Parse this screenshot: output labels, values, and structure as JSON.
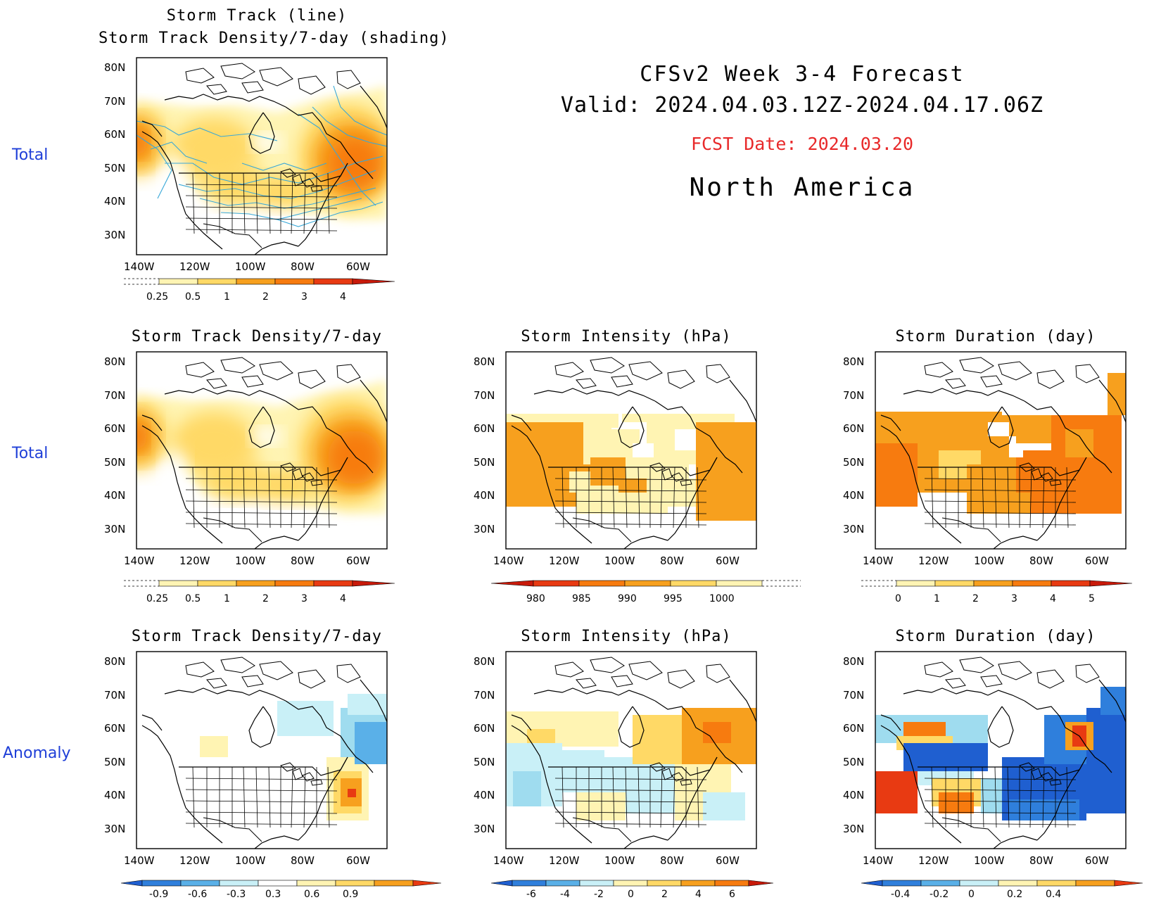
{
  "header": {
    "line1": "CFSv2 Week 3-4 Forecast",
    "line2": "Valid: 2024.04.03.12Z-2024.04.17.06Z",
    "fcst": "FCST Date: 2024.03.20",
    "region": "North America",
    "fcst_color": "#e8292a"
  },
  "rows": [
    {
      "label": "Total"
    },
    {
      "label": "Total"
    },
    {
      "label": "Anomaly"
    }
  ],
  "axes": {
    "lat": [
      "80N",
      "70N",
      "60N",
      "50N",
      "40N",
      "30N"
    ],
    "lon": [
      "140W",
      "120W",
      "100W",
      "80W",
      "60W"
    ]
  },
  "panels": {
    "p11": {
      "title1": "Storm Track (line)",
      "title2": "Storm Track Density/7-day (shading)",
      "colorbar": [
        "0.25",
        "0.5",
        "1",
        "2",
        "3",
        "4"
      ]
    },
    "p21": {
      "title": "Storm Track Density/7-day",
      "colorbar": [
        "0.25",
        "0.5",
        "1",
        "2",
        "3",
        "4"
      ]
    },
    "p22": {
      "title": "Storm Intensity (hPa)",
      "colorbar": [
        "980",
        "985",
        "990",
        "995",
        "1000"
      ]
    },
    "p23": {
      "title": "Storm Duration (day)",
      "colorbar": [
        "0",
        "1",
        "2",
        "3",
        "4",
        "5"
      ]
    },
    "p31": {
      "title": "Storm Track Density/7-day",
      "colorbar": [
        "-0.9",
        "-0.6",
        "-0.3",
        "0.3",
        "0.6",
        "0.9"
      ]
    },
    "p32": {
      "title": "Storm Intensity (hPa)",
      "colorbar": [
        "-6",
        "-4",
        "-2",
        "0",
        "2",
        "4",
        "6"
      ]
    },
    "p33": {
      "title": "Storm Duration (day)",
      "colorbar": [
        "-0.4",
        "-0.2",
        "0",
        "0.2",
        "0.4"
      ]
    }
  },
  "colors": {
    "warm": [
      "#fff4b3",
      "#ffd966",
      "#f7a01e",
      "#f77b0f",
      "#e83a12",
      "#c81a0a"
    ],
    "cool": [
      "#c9f0f7",
      "#9fdcef",
      "#5ab0e8",
      "#2f7fdc",
      "#1f5fd0"
    ],
    "track_line": "#38a8d8"
  }
}
